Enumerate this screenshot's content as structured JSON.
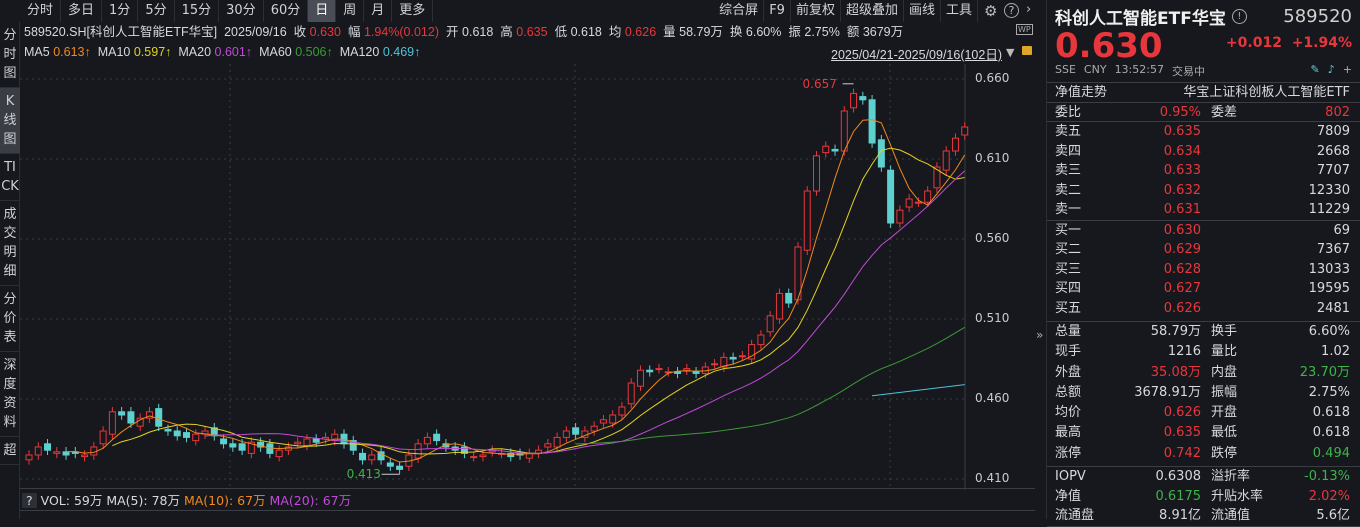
{
  "toolbar": {
    "periods": [
      "分时",
      "多日",
      "1分",
      "5分",
      "15分",
      "30分",
      "60分",
      "日",
      "周",
      "月",
      "更多"
    ],
    "active": "日",
    "tools": [
      "综合屏",
      "F9",
      "前复权",
      "超级叠加",
      "画线",
      "工具"
    ]
  },
  "sidebar": [
    "分时图",
    "K线图",
    "TICK",
    "成交明细",
    "分价表",
    "深度资料",
    "超"
  ],
  "info": {
    "symbol": "589520.SH[科创人工智能ETF华宝]",
    "date": "2025/09/16",
    "close_label": "收",
    "close": "0.630",
    "chg_label": "幅",
    "chg": "1.94%(0.012)",
    "open_label": "开",
    "open": "0.618",
    "high_label": "高",
    "high": "0.635",
    "low_label": "低",
    "low": "0.618",
    "avg_label": "均",
    "avg": "0.626",
    "vol_label": "量",
    "vol": "58.79万",
    "turn_label": "换",
    "turn": "6.60%",
    "amp_label": "振",
    "amp": "2.75%",
    "amt_label": "额",
    "amt": "3679万"
  },
  "ma": {
    "ma5": "MA5",
    "ma5v": "0.613↑",
    "ma10": "MA10",
    "ma10v": "0.597↑",
    "ma20": "MA20",
    "ma20v": "0.601↑",
    "ma60": "MA60",
    "ma60v": "0.506↑",
    "ma120": "MA120",
    "ma120v": "0.469↑"
  },
  "range": "2025/04/21-2025/09/16(102日)",
  "volume": {
    "vol": "VOL: 59万",
    "ma5": "MA(5): 78万",
    "ma10": "MA(10): 67万",
    "ma20": "MA(20): 67万",
    "help": "?"
  },
  "colors": {
    "up": "#e8373c",
    "down": "#5fd0d0",
    "ma5": "#ef8a1c",
    "ma10": "#e3d31e",
    "ma20": "#c04bd6",
    "ma60": "#3d9a38",
    "ma120": "#4fc3d6"
  },
  "chart_data": {
    "type": "candlestick",
    "ylim": [
      0.41,
      0.66
    ],
    "yticks": [
      "0.660",
      "0.610",
      "0.560",
      "0.510",
      "0.460",
      "0.410"
    ],
    "max_label": "0.657",
    "min_label": "0.413",
    "closes": [
      0.425,
      0.43,
      0.428,
      0.427,
      0.425,
      0.426,
      0.425,
      0.43,
      0.44,
      0.452,
      0.45,
      0.445,
      0.448,
      0.452,
      0.443,
      0.44,
      0.437,
      0.436,
      0.438,
      0.44,
      0.437,
      0.432,
      0.43,
      0.428,
      0.433,
      0.43,
      0.426,
      0.428,
      0.43,
      0.433,
      0.435,
      0.433,
      0.436,
      0.438,
      0.432,
      0.428,
      0.422,
      0.425,
      0.422,
      0.418,
      0.416,
      0.425,
      0.432,
      0.436,
      0.434,
      0.43,
      0.428,
      0.426,
      0.424,
      0.425,
      0.428,
      0.426,
      0.424,
      0.425,
      0.426,
      0.428,
      0.432,
      0.436,
      0.44,
      0.438,
      0.44,
      0.443,
      0.447,
      0.45,
      0.455,
      0.47,
      0.478,
      0.477,
      0.479,
      0.477,
      0.476,
      0.479,
      0.476,
      0.48,
      0.482,
      0.486,
      0.485,
      0.487,
      0.494,
      0.5,
      0.512,
      0.526,
      0.52,
      0.555,
      0.59,
      0.612,
      0.618,
      0.615,
      0.64,
      0.651,
      0.647,
      0.62,
      0.605,
      0.57,
      0.578,
      0.585,
      0.583,
      0.59,
      0.605,
      0.615,
      0.623,
      0.63
    ],
    "ma120": [
      0.462,
      0.469
    ]
  },
  "quote": {
    "name": "科创人工智能ETF华宝",
    "code": "589520",
    "price": "0.630",
    "chg": "+0.012",
    "pct": "+1.94%",
    "exchange": "SSE",
    "currency": "CNY",
    "time": "13:52:57",
    "status": "交易中",
    "nav_trend": "净值走势",
    "index_name": "华宝上证科创板人工智能ETF"
  },
  "wei": {
    "l1": "委比",
    "v1": "0.95%",
    "l2": "委差",
    "v2": "802"
  },
  "asks": [
    {
      "l": "卖五",
      "p": "0.635",
      "v": "7809"
    },
    {
      "l": "卖四",
      "p": "0.634",
      "v": "2668"
    },
    {
      "l": "卖三",
      "p": "0.633",
      "v": "7707"
    },
    {
      "l": "卖二",
      "p": "0.632",
      "v": "12330"
    },
    {
      "l": "卖一",
      "p": "0.631",
      "v": "11229"
    }
  ],
  "bids": [
    {
      "l": "买一",
      "p": "0.630",
      "v": "69"
    },
    {
      "l": "买二",
      "p": "0.629",
      "v": "7367"
    },
    {
      "l": "买三",
      "p": "0.628",
      "v": "13033"
    },
    {
      "l": "买四",
      "p": "0.627",
      "v": "19595"
    },
    {
      "l": "买五",
      "p": "0.626",
      "v": "2481"
    }
  ],
  "stats": [
    {
      "l1": "总量",
      "v1": "58.79万",
      "c1": "",
      "l2": "换手",
      "v2": "6.60%",
      "c2": ""
    },
    {
      "l1": "现手",
      "v1": "1216",
      "c1": "",
      "l2": "量比",
      "v2": "1.02",
      "c2": ""
    },
    {
      "l1": "外盘",
      "v1": "35.08万",
      "c1": "red",
      "l2": "内盘",
      "v2": "23.70万",
      "c2": "green"
    },
    {
      "l1": "总额",
      "v1": "3678.91万",
      "c1": "",
      "l2": "振幅",
      "v2": "2.75%",
      "c2": ""
    },
    {
      "l1": "均价",
      "v1": "0.626",
      "c1": "red",
      "l2": "开盘",
      "v2": "0.618",
      "c2": ""
    },
    {
      "l1": "最高",
      "v1": "0.635",
      "c1": "red",
      "l2": "最低",
      "v2": "0.618",
      "c2": ""
    },
    {
      "l1": "涨停",
      "v1": "0.742",
      "c1": "red",
      "l2": "跌停",
      "v2": "0.494",
      "c2": "green"
    }
  ],
  "etf": [
    {
      "l1": "IOPV",
      "v1": "0.6308",
      "c1": "",
      "l2": "溢折率",
      "v2": "-0.13%",
      "c2": "green"
    },
    {
      "l1": "净值",
      "v1": "0.6175",
      "c1": "green",
      "l2": "升贴水率",
      "v2": "2.02%",
      "c2": "red"
    },
    {
      "l1": "流通盘",
      "v1": "8.91亿",
      "c1": "",
      "l2": "流通值",
      "v2": "5.6亿",
      "c2": ""
    }
  ]
}
